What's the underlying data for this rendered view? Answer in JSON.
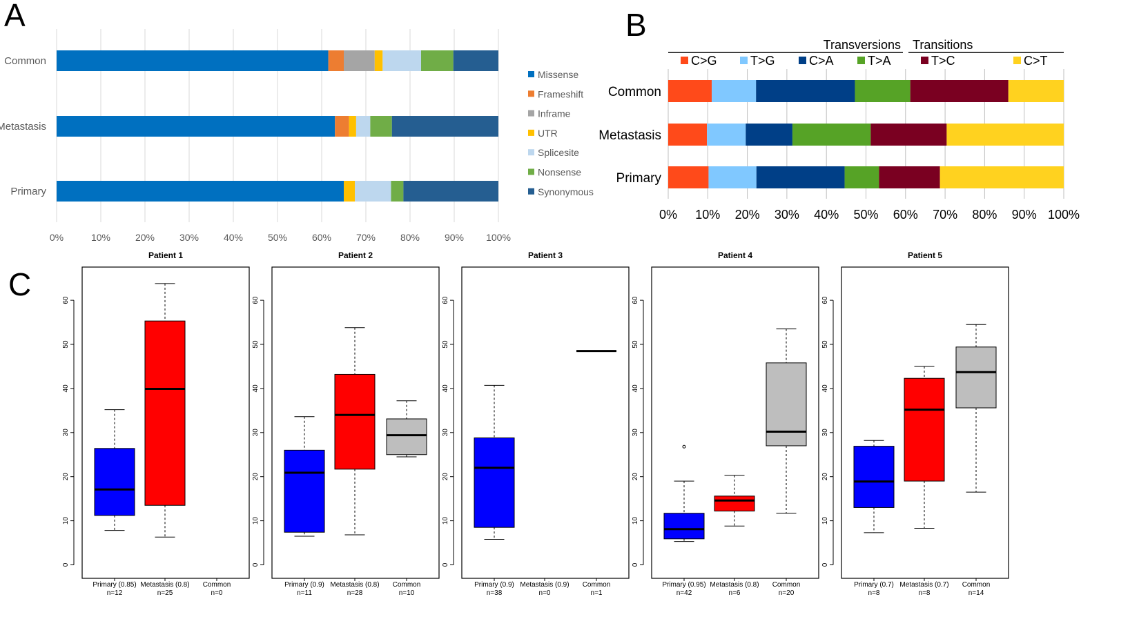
{
  "panel_labels": {
    "a": "A",
    "b": "B",
    "c": "C"
  },
  "colors": {
    "panel_a": {
      "Missense": "#0070c0",
      "Frameshift": "#ed7d31",
      "Inframe": "#a5a5a5",
      "UTR": "#ffc000",
      "Splicesite": "#bdd7ee",
      "Nonsense": "#70ad47",
      "Synonymous": "#255e91"
    },
    "panel_b": {
      "C>G": "#ff4a1a",
      "T>G": "#80c8ff",
      "C>A": "#003f87",
      "T>A": "#56a326",
      "T>C": "#7a0021",
      "C>T": "#ffd21f"
    },
    "panel_c": {
      "primary": "#0000ff",
      "metastasis": "#ff0000",
      "common": "#bebebe"
    }
  },
  "chart_data": [
    {
      "type": "bar",
      "orientation": "horizontal",
      "stacked": true,
      "panel": "A",
      "categories": [
        "Common",
        "Metastasis",
        "Primary"
      ],
      "series": [
        {
          "name": "Missense",
          "values": [
            61.5,
            63.0,
            65.0
          ]
        },
        {
          "name": "Frameshift",
          "values": [
            3.5,
            3.2,
            0.0
          ]
        },
        {
          "name": "Inframe",
          "values": [
            7.0,
            0.0,
            0.0
          ]
        },
        {
          "name": "UTR",
          "values": [
            1.8,
            1.6,
            2.5
          ]
        },
        {
          "name": "Splicesite",
          "values": [
            8.7,
            3.2,
            8.2
          ]
        },
        {
          "name": "Nonsense",
          "values": [
            7.3,
            4.9,
            2.8
          ]
        },
        {
          "name": "Synonymous",
          "values": [
            10.2,
            24.1,
            21.5
          ]
        }
      ],
      "xlim": [
        0,
        100
      ],
      "xticks": [
        "0%",
        "10%",
        "20%",
        "30%",
        "40%",
        "50%",
        "60%",
        "70%",
        "80%",
        "90%",
        "100%"
      ],
      "legend": "right",
      "grid": true
    },
    {
      "type": "bar",
      "orientation": "horizontal",
      "stacked": true,
      "panel": "B",
      "categories": [
        "Common",
        "Metastasis",
        "Primary"
      ],
      "groups": [
        {
          "name": "Transversions",
          "members": [
            "C>G",
            "T>G",
            "C>A",
            "T>A"
          ]
        },
        {
          "name": "Transitions",
          "members": [
            "T>C",
            "C>T"
          ]
        }
      ],
      "series": [
        {
          "name": "C>G",
          "values": [
            11.0,
            9.8,
            10.2
          ]
        },
        {
          "name": "T>G",
          "values": [
            11.2,
            9.8,
            12.1
          ]
        },
        {
          "name": "C>A",
          "values": [
            25.0,
            11.8,
            22.3
          ]
        },
        {
          "name": "T>A",
          "values": [
            14.0,
            19.8,
            8.7
          ]
        },
        {
          "name": "T>C",
          "values": [
            24.8,
            19.2,
            15.4
          ]
        },
        {
          "name": "C>T",
          "values": [
            14.0,
            29.6,
            31.3
          ]
        }
      ],
      "xlim": [
        0,
        100
      ],
      "xticks": [
        "0%",
        "10%",
        "20%",
        "30%",
        "40%",
        "50%",
        "60%",
        "70%",
        "80%",
        "90%",
        "100%"
      ],
      "legend": "top",
      "grid": true
    },
    {
      "type": "box",
      "panel": "C",
      "ylim": [
        0,
        65
      ],
      "yticks": [
        "0",
        "10",
        "20",
        "30",
        "40",
        "50",
        "60"
      ],
      "patients": [
        {
          "title": "Patient  1",
          "boxes": [
            {
              "group": "primary",
              "label": "Primary (0.85)",
              "n": "n=12",
              "min": 7.8,
              "q1": 11.2,
              "median": 17.1,
              "q3": 26.4,
              "max": 35.2,
              "outliers": []
            },
            {
              "group": "metastasis",
              "label": "Metastasis (0.8)",
              "n": "n=25",
              "min": 6.3,
              "q1": 13.5,
              "median": 39.9,
              "q3": 55.3,
              "max": 63.8,
              "outliers": []
            },
            {
              "group": "common",
              "label": "Common",
              "n": "n=0",
              "empty": true
            }
          ]
        },
        {
          "title": "Patient  2",
          "boxes": [
            {
              "group": "primary",
              "label": "Primary (0.9)",
              "n": "n=11",
              "min": 6.5,
              "q1": 7.4,
              "median": 20.9,
              "q3": 26.0,
              "max": 33.6,
              "outliers": []
            },
            {
              "group": "metastasis",
              "label": "Metastasis (0.8)",
              "n": "n=28",
              "min": 6.8,
              "q1": 21.7,
              "median": 34.0,
              "q3": 43.2,
              "max": 53.8,
              "outliers": []
            },
            {
              "group": "common",
              "label": "Common",
              "n": "n=10",
              "min": 24.5,
              "q1": 25.0,
              "median": 29.4,
              "q3": 33.1,
              "max": 37.2,
              "outliers": []
            }
          ]
        },
        {
          "title": "Patient  3",
          "boxes": [
            {
              "group": "primary",
              "label": "Primary (0.9)",
              "n": "n=38",
              "min": 5.8,
              "q1": 8.5,
              "median": 22.0,
              "q3": 28.8,
              "max": 40.7,
              "outliers": []
            },
            {
              "group": "metastasis",
              "label": "Metastasis (0.9)",
              "n": "n=0",
              "empty": true
            },
            {
              "group": "common",
              "label": "Common",
              "n": "n=1",
              "min": 48.5,
              "q1": 48.5,
              "median": 48.5,
              "q3": 48.5,
              "max": 48.5,
              "outliers": []
            }
          ]
        },
        {
          "title": "Patient  4",
          "boxes": [
            {
              "group": "primary",
              "label": "Primary (0.95)",
              "n": "n=42",
              "min": 5.3,
              "q1": 5.9,
              "median": 8.1,
              "q3": 11.7,
              "max": 19.0,
              "outliers": [
                26.8
              ]
            },
            {
              "group": "metastasis",
              "label": "Metastasis (0.8)",
              "n": "n=6",
              "min": 8.8,
              "q1": 12.2,
              "median": 14.6,
              "q3": 15.6,
              "max": 20.3,
              "outliers": []
            },
            {
              "group": "common",
              "label": "Common",
              "n": "n=20",
              "min": 11.7,
              "q1": 27.0,
              "median": 30.2,
              "q3": 45.8,
              "max": 53.5,
              "outliers": []
            }
          ]
        },
        {
          "title": "Patient  5",
          "boxes": [
            {
              "group": "primary",
              "label": "Primary (0.7)",
              "n": "n=8",
              "min": 7.3,
              "q1": 13.0,
              "median": 18.9,
              "q3": 26.9,
              "max": 28.2,
              "outliers": []
            },
            {
              "group": "metastasis",
              "label": "Metastasis (0.7)",
              "n": "n=8",
              "min": 8.3,
              "q1": 19.0,
              "median": 35.2,
              "q3": 42.3,
              "max": 45.0,
              "outliers": []
            },
            {
              "group": "common",
              "label": "Common",
              "n": "n=14",
              "min": 16.5,
              "q1": 35.6,
              "median": 43.7,
              "q3": 49.4,
              "max": 54.5,
              "outliers": []
            }
          ]
        }
      ]
    }
  ]
}
